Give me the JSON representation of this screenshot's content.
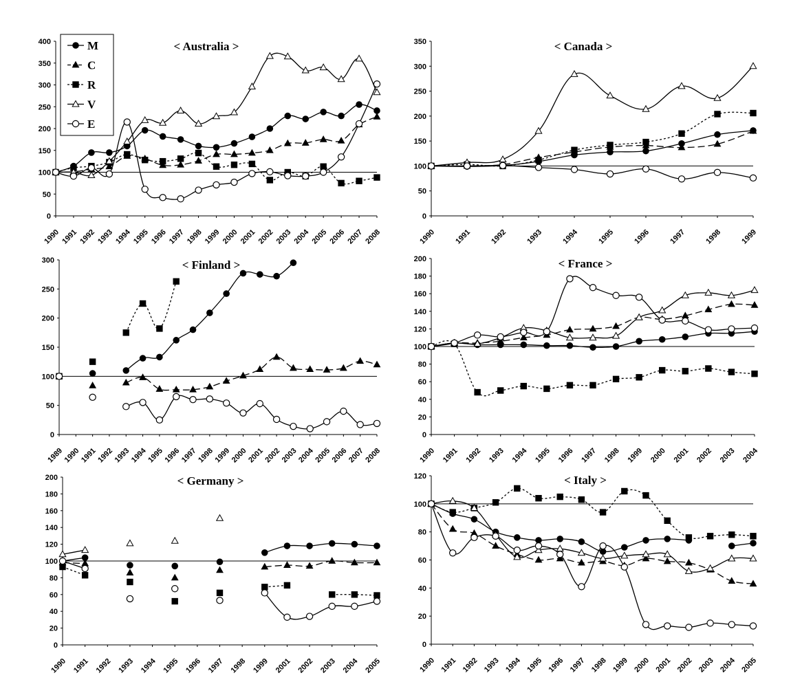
{
  "chart_data": [
    {
      "type": "line",
      "title": "< Australia >",
      "x": [
        "1990",
        "1991",
        "1992",
        "1993",
        "1994",
        "1995",
        "1996",
        "1997",
        "1998",
        "1999",
        "2000",
        "2001",
        "2002",
        "2003",
        "2004",
        "2005",
        "2006",
        "2007",
        "2008"
      ],
      "ylim": [
        0,
        400
      ],
      "yticks": [
        0,
        50,
        100,
        150,
        200,
        250,
        300,
        350,
        400
      ],
      "baseline": 100,
      "legend": "top-left",
      "series": [
        {
          "name": "M",
          "values": [
            100,
            114,
            145,
            145,
            160,
            196,
            182,
            175,
            160,
            157,
            166,
            181,
            200,
            229,
            222,
            238,
            229,
            255,
            241
          ]
        },
        {
          "name": "C",
          "values": [
            100,
            101,
            107,
            113,
            137,
            131,
            116,
            117,
            126,
            141,
            141,
            144,
            150,
            166,
            167,
            175,
            172,
            209,
            227
          ]
        },
        {
          "name": "R",
          "values": [
            100,
            110,
            114,
            123,
            141,
            128,
            125,
            131,
            144,
            113,
            117,
            119,
            82,
            100,
            91,
            113,
            75,
            80,
            88
          ]
        },
        {
          "name": "V",
          "values": [
            100,
            100,
            93,
            125,
            170,
            219,
            213,
            241,
            211,
            228,
            237,
            296,
            366,
            365,
            333,
            340,
            313,
            360,
            283
          ]
        },
        {
          "name": "E",
          "values": [
            100,
            91,
            110,
            96,
            215,
            61,
            42,
            39,
            59,
            71,
            77,
            97,
            101,
            92,
            91,
            100,
            135,
            211,
            302
          ]
        }
      ]
    },
    {
      "type": "line",
      "title": "< Canada >",
      "x": [
        "1990",
        "1991",
        "1992",
        "1993",
        "1994",
        "1995",
        "1996",
        "1997",
        "1998",
        "1999"
      ],
      "ylim": [
        0,
        350
      ],
      "yticks": [
        0,
        50,
        100,
        150,
        200,
        250,
        300,
        350
      ],
      "baseline": 100,
      "series": [
        {
          "name": "M",
          "values": [
            100,
            99,
            101,
            109,
            122,
            128,
            130,
            145,
            163,
            171
          ]
        },
        {
          "name": "C",
          "values": [
            100,
            100,
            103,
            117,
            128,
            138,
            141,
            137,
            144,
            170
          ]
        },
        {
          "name": "R",
          "values": [
            100,
            103,
            100,
            112,
            132,
            142,
            148,
            165,
            204,
            206
          ]
        },
        {
          "name": "V",
          "values": [
            100,
            107,
            113,
            170,
            284,
            241,
            214,
            260,
            236,
            300
          ]
        },
        {
          "name": "E",
          "values": [
            100,
            100,
            101,
            97,
            93,
            84,
            94,
            74,
            87,
            76
          ]
        }
      ]
    },
    {
      "type": "line",
      "title": "< Finland >",
      "x": [
        "1989",
        "1990",
        "1991",
        "1992",
        "1993",
        "1994",
        "1995",
        "1996",
        "1997",
        "1998",
        "1999",
        "2000",
        "2001",
        "2002",
        "2003",
        "2004",
        "2005",
        "2006",
        "2007",
        "2008"
      ],
      "ylim": [
        0,
        300
      ],
      "yticks": [
        0,
        50,
        100,
        150,
        200,
        250,
        300
      ],
      "baseline": 100,
      "series": [
        {
          "name": "M",
          "values": [
            100,
            null,
            105,
            null,
            110,
            131,
            133,
            162,
            180,
            209,
            242,
            277,
            275,
            272,
            295,
            null,
            null,
            null,
            null,
            null
          ]
        },
        {
          "name": "C",
          "values": [
            100,
            null,
            84,
            null,
            89,
            98,
            78,
            77,
            77,
            82,
            92,
            101,
            112,
            133,
            114,
            112,
            111,
            114,
            126,
            120
          ]
        },
        {
          "name": "R",
          "values": [
            100,
            null,
            125,
            null,
            175,
            225,
            182,
            263,
            null,
            null,
            null,
            null,
            null,
            null,
            null,
            null,
            null,
            null,
            null,
            null
          ]
        },
        {
          "name": "E",
          "values": [
            100,
            null,
            64,
            null,
            48,
            55,
            25,
            65,
            60,
            61,
            54,
            37,
            53,
            26,
            14,
            10,
            22,
            40,
            17,
            19
          ]
        }
      ]
    },
    {
      "type": "line",
      "title": "< France >",
      "x": [
        "1990",
        "1991",
        "1992",
        "1993",
        "1994",
        "1995",
        "1996",
        "1997",
        "1998",
        "1999",
        "2000",
        "2001",
        "2002",
        "2003",
        "2004"
      ],
      "ylim": [
        0,
        200
      ],
      "yticks": [
        0,
        20,
        40,
        60,
        80,
        100,
        120,
        140,
        160,
        180,
        200
      ],
      "baseline": 100,
      "series": [
        {
          "name": "M",
          "values": [
            100,
            104,
            102,
            102,
            102,
            101,
            101,
            99,
            100,
            106,
            108,
            111,
            115,
            115,
            117
          ]
        },
        {
          "name": "C",
          "values": [
            100,
            104,
            104,
            106,
            110,
            113,
            119,
            120,
            123,
            133,
            131,
            135,
            142,
            148,
            147
          ]
        },
        {
          "name": "R",
          "values": [
            100,
            103,
            48,
            50,
            55,
            52,
            56,
            56,
            63,
            65,
            73,
            72,
            75,
            71,
            69
          ]
        },
        {
          "name": "V",
          "values": [
            100,
            104,
            103,
            110,
            121,
            118,
            110,
            110,
            112,
            133,
            141,
            158,
            161,
            158,
            164
          ]
        },
        {
          "name": "E",
          "values": [
            100,
            104,
            113,
            111,
            116,
            117,
            177,
            167,
            158,
            156,
            130,
            129,
            119,
            120,
            121
          ]
        }
      ]
    },
    {
      "type": "line",
      "title": "< Germany >",
      "x": [
        "1990",
        "1991",
        "1992",
        "1993",
        "1994",
        "1995",
        "1996",
        "1997",
        "1998",
        "1999",
        "2001",
        "2002",
        "2003",
        "2004",
        "2005"
      ],
      "ylim": [
        0,
        200
      ],
      "yticks": [
        0,
        20,
        40,
        60,
        80,
        100,
        120,
        140,
        160,
        180,
        200
      ],
      "baseline": 100,
      "series": [
        {
          "name": "M",
          "values": [
            100,
            104,
            null,
            95,
            null,
            94,
            null,
            99,
            null,
            110,
            118,
            118,
            121,
            120,
            118
          ]
        },
        {
          "name": "C",
          "values": [
            98,
            97,
            null,
            86,
            null,
            80,
            null,
            89,
            null,
            93,
            95,
            94,
            100,
            98,
            98
          ]
        },
        {
          "name": "R",
          "values": [
            93,
            83,
            null,
            75,
            null,
            52,
            null,
            62,
            null,
            69,
            71,
            null,
            60,
            60,
            59
          ]
        },
        {
          "name": "V",
          "values": [
            108,
            113,
            null,
            121,
            null,
            124,
            null,
            151,
            null,
            null,
            null,
            null,
            null,
            null,
            null
          ]
        },
        {
          "name": "E",
          "values": [
            100,
            91,
            null,
            55,
            null,
            67,
            null,
            53,
            null,
            62,
            33,
            34,
            46,
            46,
            52
          ]
        }
      ]
    },
    {
      "type": "line",
      "title": "< Italy >",
      "x": [
        "1990",
        "1991",
        "1992",
        "1993",
        "1994",
        "1995",
        "1996",
        "1997",
        "1998",
        "1999",
        "2000",
        "2001",
        "2002",
        "2003",
        "2004",
        "2005"
      ],
      "ylim": [
        0,
        120
      ],
      "yticks": [
        0,
        20,
        40,
        60,
        80,
        100,
        120
      ],
      "baseline": 100,
      "series": [
        {
          "name": "M",
          "values": [
            100,
            93,
            89,
            80,
            76,
            74,
            75,
            73,
            66,
            69,
            74,
            75,
            74,
            null,
            70,
            72
          ]
        },
        {
          "name": "C",
          "values": [
            100,
            82,
            79,
            70,
            64,
            60,
            61,
            58,
            59,
            56,
            61,
            59,
            58,
            53,
            45,
            43
          ]
        },
        {
          "name": "R",
          "values": [
            100,
            94,
            97,
            101,
            111,
            104,
            105,
            103,
            94,
            109,
            106,
            88,
            76,
            77,
            78,
            77
          ]
        },
        {
          "name": "V",
          "values": [
            100,
            102,
            97,
            78,
            62,
            67,
            68,
            65,
            61,
            63,
            64,
            64,
            52,
            54,
            61,
            61
          ]
        },
        {
          "name": "E",
          "values": [
            100,
            65,
            76,
            77,
            67,
            70,
            64,
            41,
            70,
            55,
            14,
            13,
            12,
            15,
            14,
            13
          ]
        }
      ]
    }
  ],
  "legend": {
    "entries": [
      {
        "key": "M",
        "label": "M"
      },
      {
        "key": "C",
        "label": "C"
      },
      {
        "key": "R",
        "label": "R"
      },
      {
        "key": "V",
        "label": "V"
      },
      {
        "key": "E",
        "label": "E"
      }
    ]
  }
}
